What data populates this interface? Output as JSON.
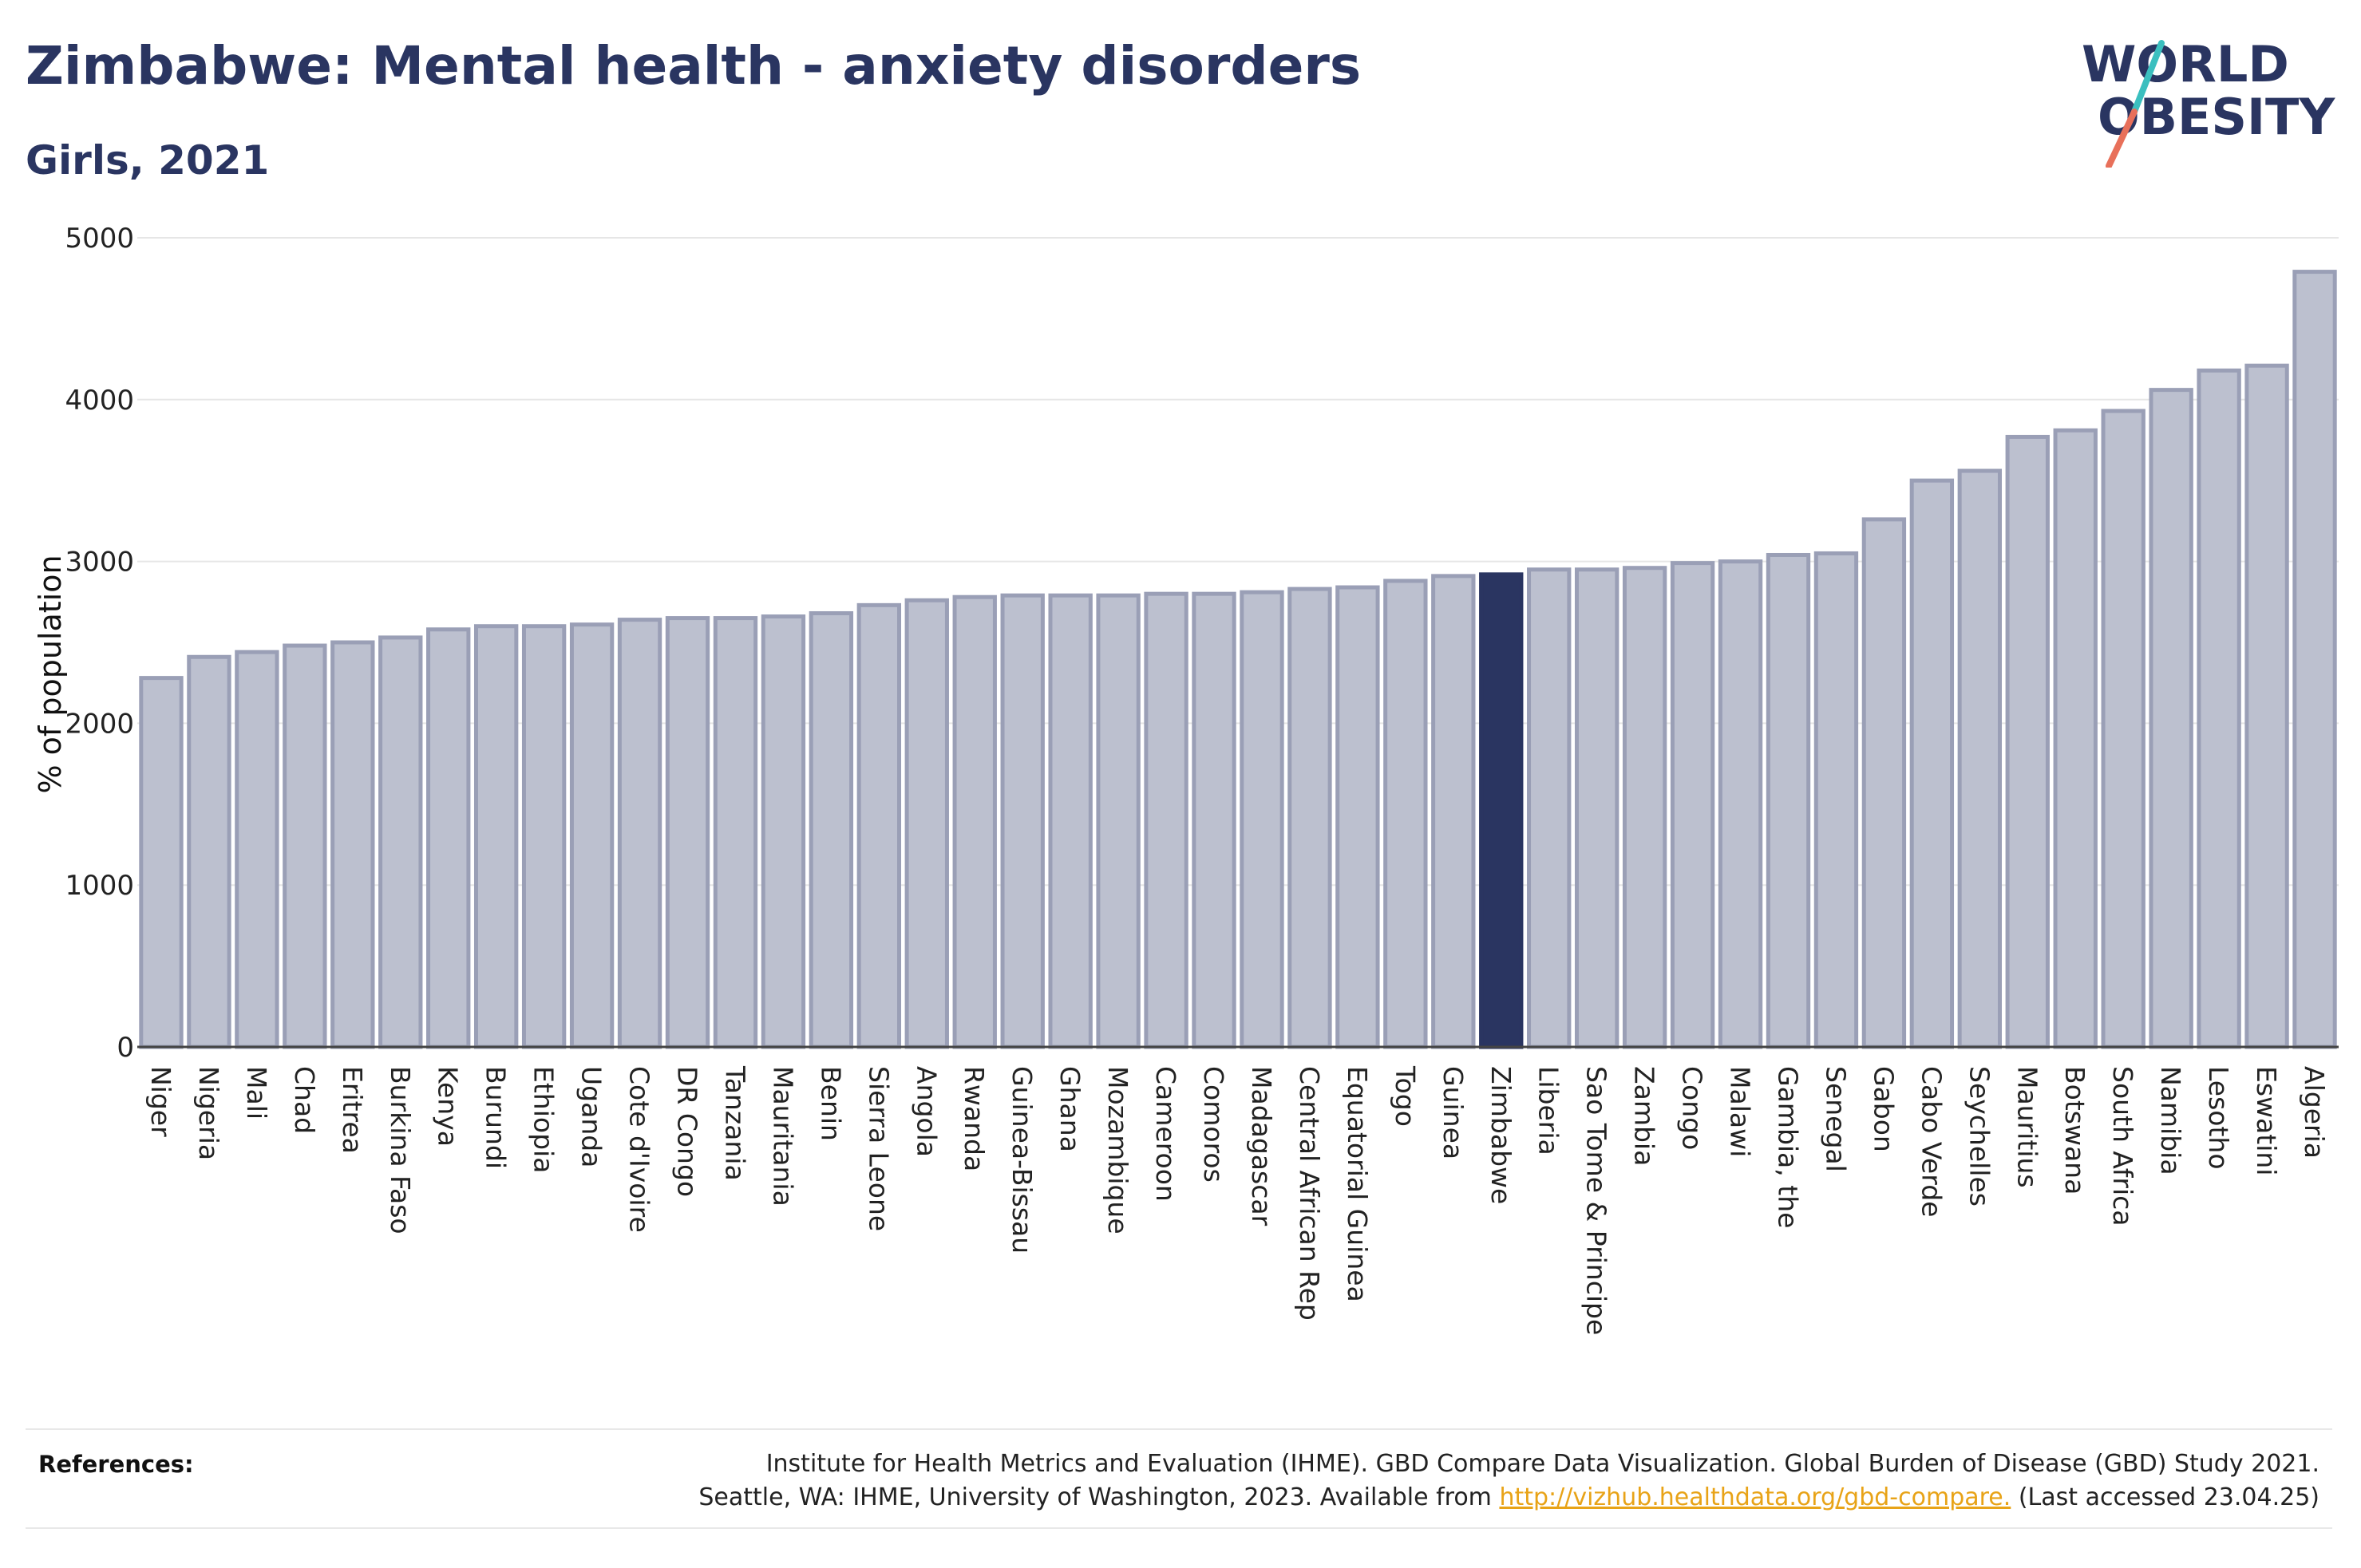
{
  "header": {
    "title": "Zimbabwe: Mental health - anxiety disorders",
    "subtitle": "Girls, 2021"
  },
  "logo": {
    "line1": "WORLD",
    "line2": "OBESITY",
    "accent_teal": "#3bbfbf",
    "accent_coral": "#e8705a"
  },
  "colors": {
    "bar": "#bcc0cf",
    "bar_stroke": "#9a9fb6",
    "highlight": "#2a3561",
    "grid": "#e6e6e6",
    "text": "#2a3561"
  },
  "chart_data": {
    "type": "bar",
    "title": "Zimbabwe: Mental health - anxiety disorders",
    "subtitle": "Girls, 2021",
    "xlabel": "",
    "ylabel": "% of population",
    "ylim": [
      0,
      5000
    ],
    "yticks": [
      0,
      1000,
      2000,
      3000,
      4000,
      5000
    ],
    "grid": true,
    "highlight": "Zimbabwe",
    "categories": [
      "Niger",
      "Nigeria",
      "Mali",
      "Chad",
      "Eritrea",
      "Burkina Faso",
      "Kenya",
      "Burundi",
      "Ethiopia",
      "Uganda",
      "Cote d'Ivoire",
      "DR Congo",
      "Tanzania",
      "Mauritania",
      "Benin",
      "Sierra Leone",
      "Angola",
      "Rwanda",
      "Guinea-Bissau",
      "Ghana",
      "Mozambique",
      "Cameroon",
      "Comoros",
      "Madagascar",
      "Central African Rep",
      "Equatorial Guinea",
      "Togo",
      "Guinea",
      "Zimbabwe",
      "Liberia",
      "Sao Tome & Principe",
      "Zambia",
      "Congo",
      "Malawi",
      "Gambia, the",
      "Senegal",
      "Gabon",
      "Cabo Verde",
      "Seychelles",
      "Mauritius",
      "Botswana",
      "South Africa",
      "Namibia",
      "Lesotho",
      "Eswatini",
      "Algeria"
    ],
    "values": [
      2280,
      2410,
      2440,
      2480,
      2500,
      2530,
      2580,
      2600,
      2600,
      2610,
      2640,
      2650,
      2650,
      2660,
      2680,
      2730,
      2760,
      2780,
      2790,
      2790,
      2790,
      2800,
      2800,
      2810,
      2830,
      2840,
      2880,
      2910,
      2920,
      2950,
      2950,
      2960,
      2990,
      3000,
      3040,
      3050,
      3260,
      3500,
      3560,
      3770,
      3810,
      3930,
      4060,
      4180,
      4210,
      4790
    ]
  },
  "references": {
    "label": "References:",
    "line1": "Institute for Health Metrics and Evaluation (IHME). GBD Compare Data Visualization. Global Burden of Disease (GBD) Study 2021.",
    "line2_prefix": "Seattle, WA: IHME, University of Washington, 2023. Available from ",
    "link": "http://vizhub.healthdata.org/gbd-compare.",
    "line2_suffix": " (Last accessed 23.04.25)"
  }
}
